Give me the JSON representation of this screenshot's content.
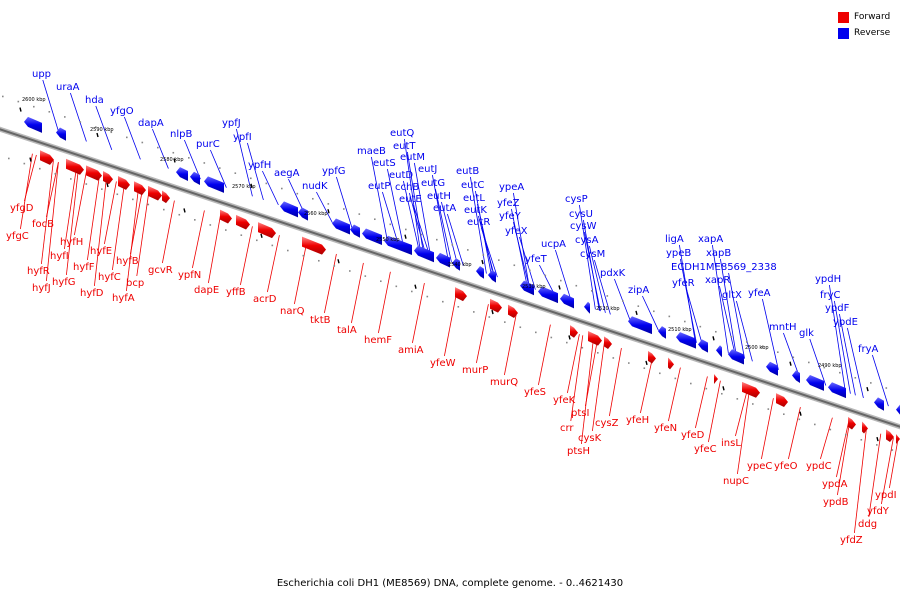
{
  "caption": "Escherichia coli DH1 (ME8569) DNA, complete genome. - 0..4621430",
  "legend": [
    {
      "label": "Forward",
      "color": "#ee0000"
    },
    {
      "label": "Reverse",
      "color": "#0000ee"
    }
  ],
  "colors": {
    "forward": "#ee0000",
    "reverse": "#0000ee",
    "backbone": "#777777",
    "ticks": "#000000"
  },
  "scale_labels": [
    "2600 kbp",
    "2590 kbp",
    "2580 kbp",
    "2570 kbp",
    "2560 kbp",
    "2550 kbp",
    "2540 kbp",
    "2530 kbp",
    "2520 kbp",
    "2510 kbp",
    "2500 kbp",
    "2490 kbp"
  ],
  "genes_forward": [
    "yfgD",
    "yfgC",
    "focB",
    "hyfH",
    "hyfI",
    "hyfR",
    "hyfJ",
    "hyfG",
    "hyfF",
    "hyfE",
    "hyfD",
    "hyfC",
    "hyfB",
    "bcp",
    "hyfA",
    "gcvR",
    "ypfN",
    "dapE",
    "yffB",
    "acrD",
    "narQ",
    "tktB",
    "talA",
    "hemF",
    "amiA",
    "yfeW",
    "murP",
    "murQ",
    "yfeS",
    "yfeK",
    "ptsI",
    "crr",
    "cysK",
    "cysZ",
    "ptsH",
    "yfeH",
    "yfeN",
    "yfeD",
    "yfeC",
    "insL",
    "nupC",
    "ypeC",
    "yfeO",
    "ypdC",
    "ypdA",
    "ypdB",
    "ddg",
    "ypdI",
    "yfdY",
    "yfdZ"
  ],
  "genes_reverse": [
    "upp",
    "uraA",
    "hda",
    "yfgO",
    "dapA",
    "nlpB",
    "purC",
    "ypfJ",
    "ypfI",
    "ypfH",
    "aegA",
    "nudK",
    "ypfG",
    "maeB",
    "eutQ",
    "eutT",
    "eutS",
    "eutM",
    "eutD",
    "eutP",
    "eutJ",
    "cchB",
    "eutG",
    "eutE",
    "eutH",
    "eutA",
    "eutB",
    "eutC",
    "eutL",
    "eutK",
    "eutR",
    "ypeA",
    "yfeZ",
    "yfeY",
    "yfeX",
    "cysP",
    "cysU",
    "cysW",
    "ucpA",
    "cysA",
    "yfeT",
    "cysM",
    "pdxK",
    "zipA",
    "ligA",
    "ypeB",
    "xapA",
    "ECDH1ME8569_2338",
    "xapB",
    "yfeR",
    "xapR",
    "gltX",
    "yfeA",
    "mntH",
    "glk",
    "ypdH",
    "fryC",
    "ypdF",
    "ypdE",
    "fryA"
  ]
}
